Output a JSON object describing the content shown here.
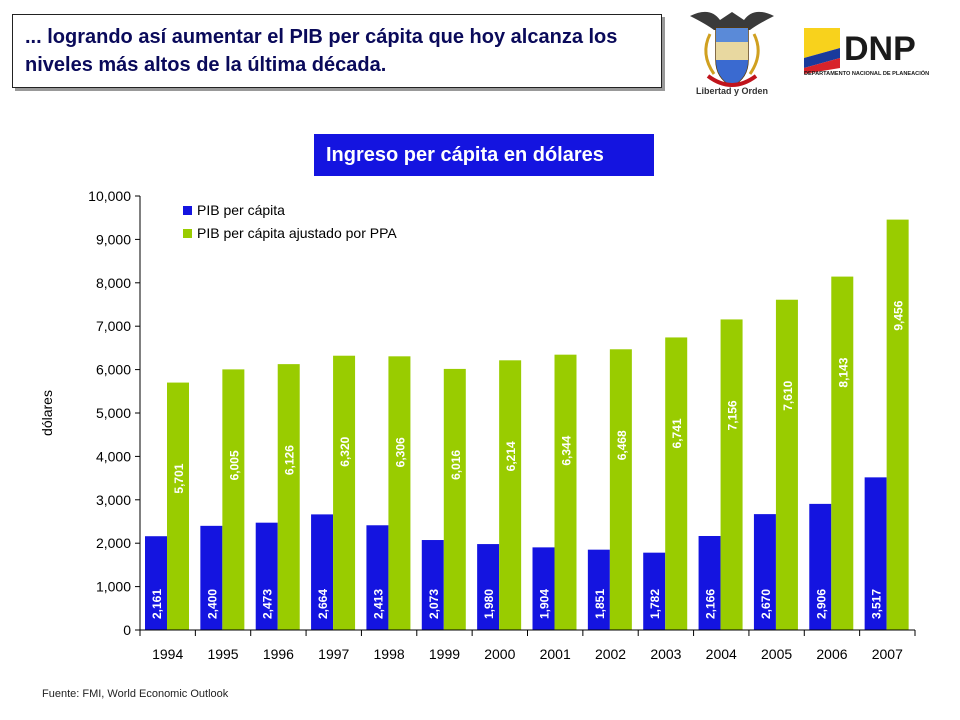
{
  "headline": {
    "text": "... logrando así aumentar el PIB per cápita que hoy alcanza los niveles más altos de la última década."
  },
  "seal": {
    "caption": "Libertad y Orden"
  },
  "logo": {
    "brand": "DNP",
    "subtitle": "DEPARTAMENTO NACIONAL DE PLANEACIÓN",
    "flag_colors": [
      "#f8d21c",
      "#1a3a9c",
      "#d8232a"
    ]
  },
  "chart_title": "Ingreso per cápita en dólares",
  "chart_data": {
    "type": "bar",
    "categories": [
      "1994",
      "1995",
      "1996",
      "1997",
      "1998",
      "1999",
      "2000",
      "2001",
      "2002",
      "2003",
      "2004",
      "2005",
      "2006",
      "2007"
    ],
    "series": [
      {
        "name": "PIB per cápita",
        "color": "#1414e0",
        "values": [
          2161,
          2400,
          2473,
          2664,
          2413,
          2073,
          1980,
          1904,
          1851,
          1782,
          2166,
          2670,
          2906,
          3517
        ],
        "labels": [
          "2,161",
          "2,400",
          "2,473",
          "2,664",
          "2,413",
          "2,073",
          "1,980",
          "1,904",
          "1,851",
          "1,782",
          "2,166",
          "2,670",
          "2,906",
          "3,517"
        ]
      },
      {
        "name": "PIB per cápita ajustado por PPA",
        "color": "#99cc00",
        "values": [
          5701,
          6005,
          6126,
          6320,
          6306,
          6016,
          6214,
          6344,
          6468,
          6741,
          7156,
          7610,
          8143,
          9456
        ],
        "labels": [
          "5,701",
          "6,005",
          "6,126",
          "6,320",
          "6,306",
          "6,016",
          "6,214",
          "6,344",
          "6,468",
          "6,741",
          "7,156",
          "7,610",
          "8,143",
          "9,456"
        ]
      }
    ],
    "ylabel": "dólares",
    "ylim": [
      0,
      10000
    ],
    "yticks": [
      0,
      1000,
      2000,
      3000,
      4000,
      5000,
      6000,
      7000,
      8000,
      9000,
      10000
    ],
    "ytick_labels": [
      "0",
      "1,000",
      "2,000",
      "3,000",
      "4,000",
      "5,000",
      "6,000",
      "7,000",
      "8,000",
      "9,000",
      "10,000"
    ],
    "legend_position": "top-left",
    "grid": false
  },
  "source": "Fuente: FMI,  World Economic Outlook"
}
